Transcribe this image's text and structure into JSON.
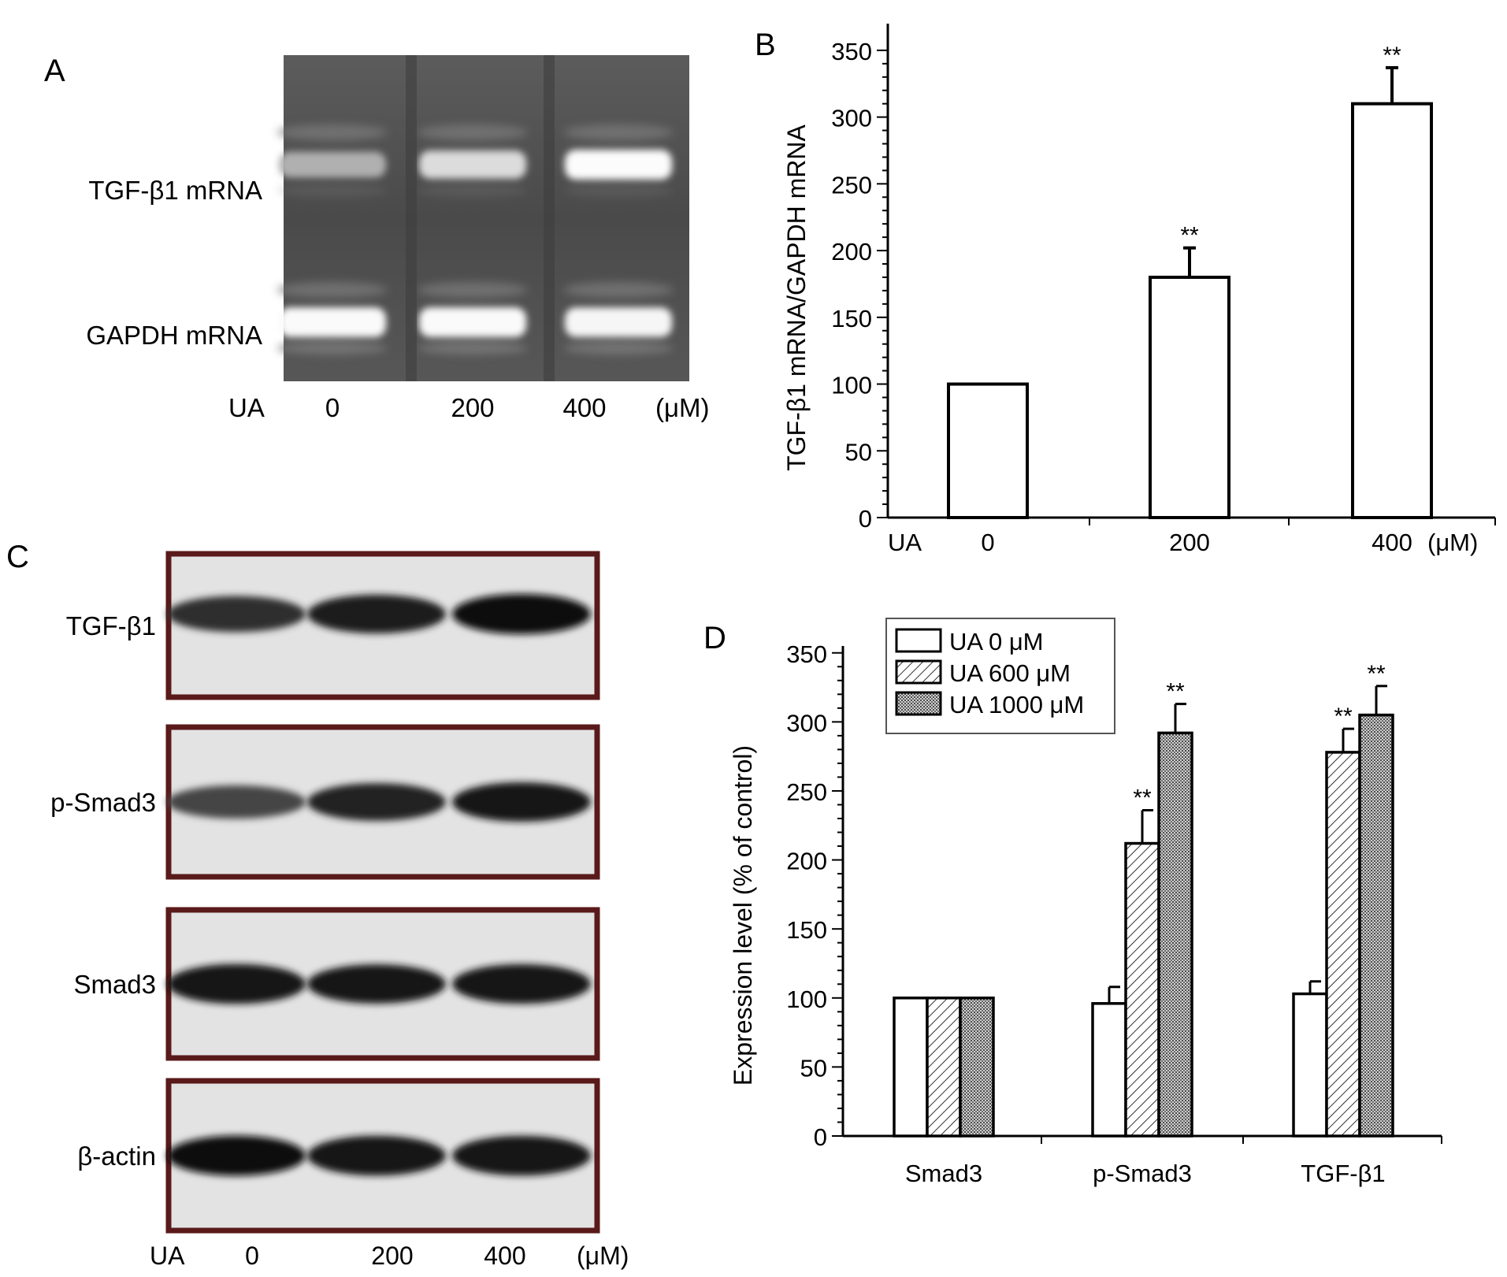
{
  "panels": {
    "A": {
      "letter": "A",
      "row_labels": [
        "TGF-β1 mRNA",
        "GAPDH mRNA"
      ],
      "treatment_label": "UA",
      "doses": [
        "0",
        "200",
        "400"
      ],
      "unit": "(μM)",
      "band_intensity": {
        "TGF-β1 mRNA": [
          0.55,
          0.8,
          0.98
        ],
        "GAPDH mRNA": [
          0.97,
          0.97,
          0.95
        ]
      }
    },
    "B": {
      "letter": "B"
    },
    "C": {
      "letter": "C",
      "blots": [
        {
          "label": "TGF-β1",
          "intensity": [
            0.78,
            0.9,
            0.97
          ]
        },
        {
          "label": "p-Smad3",
          "intensity": [
            0.65,
            0.85,
            0.93
          ]
        },
        {
          "label": "Smad3",
          "intensity": [
            0.95,
            0.92,
            0.94
          ]
        },
        {
          "label": "β-actin",
          "intensity": [
            0.96,
            0.95,
            0.95
          ]
        }
      ],
      "treatment_label": "UA",
      "doses": [
        "0",
        "200",
        "400"
      ],
      "unit": "(μM)",
      "frame_color": "#5a1a1a"
    },
    "D": {
      "letter": "D"
    }
  },
  "chart_data": [
    {
      "panel": "B",
      "type": "bar",
      "ylabel": "TGF-β1 mRNA/GAPDH mRNA",
      "xlabel": "",
      "x_prefix": "UA",
      "categories": [
        "0",
        "200",
        "400"
      ],
      "x_unit": "(μM)",
      "values": [
        100,
        180,
        310
      ],
      "errors": [
        0,
        22,
        27
      ],
      "significance": [
        "",
        "**",
        "**"
      ],
      "ylim": [
        0,
        370
      ],
      "yticks": [
        "0",
        "50",
        "100",
        "150",
        "200",
        "250",
        "300",
        "350"
      ],
      "bar_fill": "#ffffff",
      "grid": false
    },
    {
      "panel": "D",
      "type": "bar",
      "ylabel": "Expression level (% of control)",
      "xlabel": "",
      "categories": [
        "Smad3",
        "p-Smad3",
        "TGF-β1"
      ],
      "series": [
        {
          "name": "UA 0 μM",
          "pattern": "open",
          "values": [
            100,
            96,
            103
          ],
          "errors": [
            0,
            12,
            9
          ],
          "significance": [
            "",
            "",
            ""
          ]
        },
        {
          "name": "UA 600 μM",
          "pattern": "hatched",
          "values": [
            100,
            212,
            278
          ],
          "errors": [
            0,
            24,
            17
          ],
          "significance": [
            "",
            "**",
            "**"
          ]
        },
        {
          "name": "UA 1000 μM",
          "pattern": "dotted",
          "values": [
            100,
            292,
            305
          ],
          "errors": [
            0,
            21,
            21
          ],
          "significance": [
            "",
            "**",
            "**"
          ]
        }
      ],
      "ylim": [
        0,
        355
      ],
      "yticks": [
        "0",
        "50",
        "100",
        "150",
        "200",
        "250",
        "300",
        "350"
      ],
      "legend": "top-left",
      "grid": false
    }
  ]
}
